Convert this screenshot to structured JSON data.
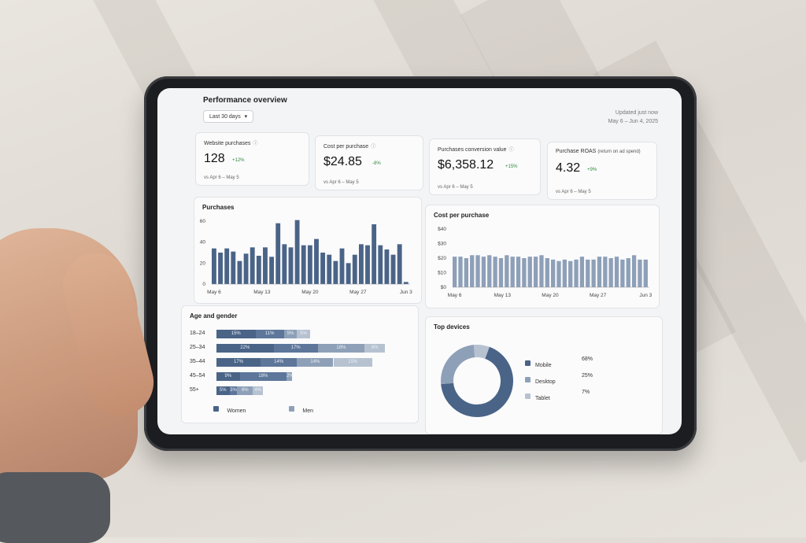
{
  "header": {
    "title": "Performance overview",
    "date_range_label": "Last 30 days",
    "updated_text": "Updated just now",
    "updated_range": "May 6 – Jun 4, 2025"
  },
  "kpis": [
    {
      "label": "Website purchases",
      "value": "128",
      "delta": "+12%",
      "compare": "vs Apr 6 – May 5"
    },
    {
      "label": "Cost per purchase",
      "value": "$24.85",
      "delta": "-8%",
      "compare": "vs Apr 6 – May 5"
    },
    {
      "label": "Purchases conversion value",
      "value": "$6,358.12",
      "delta": "+15%",
      "compare": "vs Apr 6 – May 5"
    },
    {
      "label": "Purchase ROAS",
      "label_suffix": "(return on ad spend)",
      "value": "4.32",
      "delta": "+9%",
      "compare": "vs Apr 6 – May 5"
    }
  ],
  "colors": {
    "primary": "#4a6487",
    "secondary": "#8ea0b8",
    "tertiary": "#b7c2d1",
    "positive": "#2f8a3a"
  },
  "icons": {
    "info": "info-icon",
    "dropdown": "chevron-down-icon"
  },
  "chart_data": [
    {
      "type": "bar",
      "title": "Purchases",
      "y_ticks": [
        "60",
        "40",
        "20",
        "0"
      ],
      "x_ticks": [
        "May 6",
        "May 13",
        "May 20",
        "May 27",
        "Jun 3"
      ],
      "ylim": [
        0,
        60
      ],
      "values": [
        34,
        30,
        34,
        31,
        22,
        29,
        35,
        27,
        35,
        26,
        58,
        38,
        35,
        61,
        37,
        37,
        43,
        30,
        28,
        22,
        34,
        20,
        28,
        38,
        37,
        57,
        37,
        33,
        28,
        38,
        2
      ]
    },
    {
      "type": "bar",
      "title": "Cost per purchase",
      "y_ticks": [
        "$40",
        "$30",
        "$20",
        "$10",
        "$0"
      ],
      "x_ticks": [
        "May 6",
        "May 13",
        "May 20",
        "May 27",
        "Jun 3"
      ],
      "ylim": [
        0,
        40
      ],
      "values": [
        21,
        21,
        20,
        22,
        22,
        21,
        22,
        21,
        20,
        22,
        21,
        21,
        20,
        21,
        21,
        22,
        20,
        19,
        18,
        19,
        18,
        19,
        21,
        19,
        19,
        21,
        21,
        20,
        21,
        19,
        20,
        22,
        19,
        19
      ]
    },
    {
      "type": "bar",
      "title": "Age and gender",
      "orientation": "horizontal-stacked",
      "categories": [
        "18–24",
        "25–34",
        "35–44",
        "45–54",
        "55+"
      ],
      "series": [
        {
          "name": "Women",
          "labels": [
            "15%",
            "22%",
            "17%",
            "9%",
            "5%"
          ],
          "values": [
            15,
            22,
            17,
            9,
            5
          ]
        },
        {
          "name": "Women",
          "labels": [
            "11%",
            "17%",
            "14%",
            "18%",
            "3%"
          ],
          "values": [
            11,
            17,
            14,
            18,
            3
          ]
        },
        {
          "name": "Men",
          "labels": [
            "5%",
            "18%",
            "14%",
            "2%",
            "6%"
          ],
          "values": [
            5,
            18,
            14,
            2,
            6
          ]
        },
        {
          "name": "Men",
          "labels": [
            "5%",
            "8%",
            "15%",
            "",
            "4%"
          ],
          "values": [
            5,
            8,
            15,
            0,
            4
          ]
        }
      ],
      "legend": [
        "Women",
        "Men"
      ]
    },
    {
      "type": "pie",
      "title": "Top devices",
      "categories": [
        "Mobile",
        "Desktop",
        "Tablet"
      ],
      "values": [
        68,
        25,
        7
      ],
      "labels": [
        "68%",
        "25%",
        "7%"
      ]
    }
  ]
}
